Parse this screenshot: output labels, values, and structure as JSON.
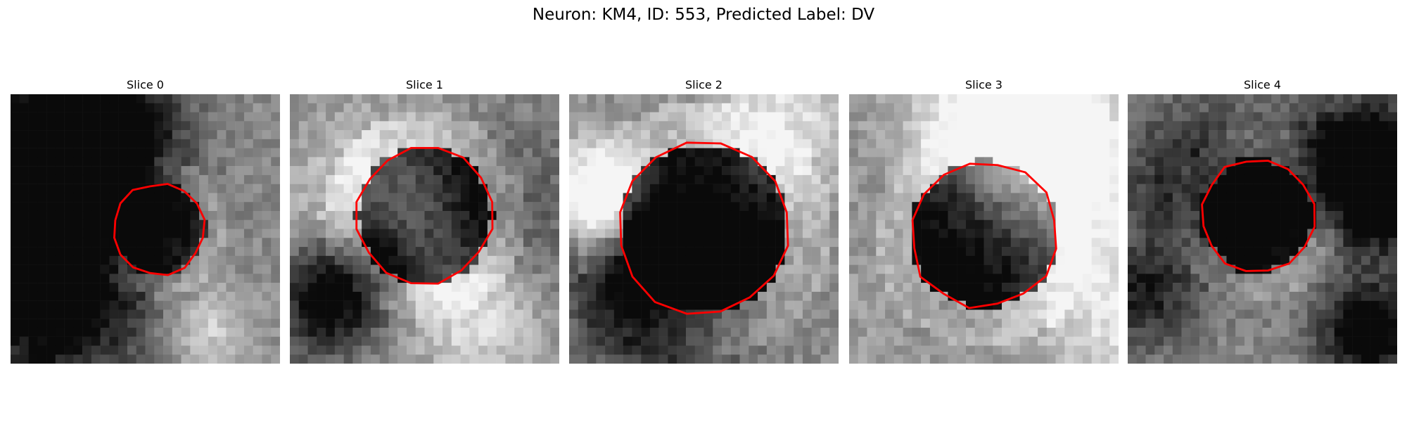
{
  "figure": {
    "title": "Neuron: KM4, ID: 553, Predicted Label: DV"
  },
  "panels": [
    {
      "title": "Slice 0",
      "seed": 11,
      "hole_center": [
        0.55,
        0.5
      ],
      "hole_radius": 0.16,
      "hole_depth": 0.55
    },
    {
      "title": "Slice 1",
      "seed": 23,
      "hole_center": [
        0.5,
        0.45
      ],
      "hole_radius": 0.24,
      "hole_depth": 0.85
    },
    {
      "title": "Slice 2",
      "seed": 37,
      "hole_center": [
        0.5,
        0.5
      ],
      "hole_radius": 0.3,
      "hole_depth": 0.95
    },
    {
      "title": "Slice 3",
      "seed": 51,
      "hole_center": [
        0.5,
        0.52
      ],
      "hole_radius": 0.26,
      "hole_depth": 0.9
    },
    {
      "title": "Slice 4",
      "seed": 67,
      "hole_center": [
        0.48,
        0.45
      ],
      "hole_radius": 0.2,
      "hole_depth": 0.75
    }
  ],
  "contour_color": "#ff0000",
  "colormap": "gray"
}
